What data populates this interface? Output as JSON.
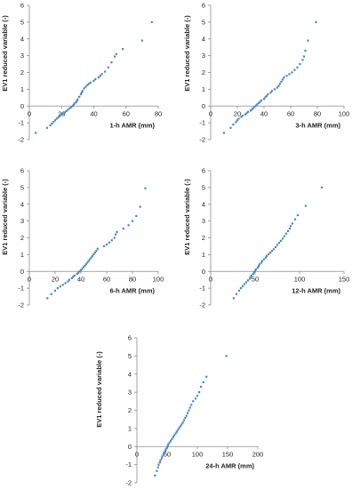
{
  "marker_color": "#4a86c5",
  "chart_data": [
    {
      "type": "scatter",
      "xlabel": "1-h AMR (mm)",
      "ylabel": "EV1 reduced variable (-)",
      "xlim": [
        0,
        80
      ],
      "ylim": [
        -2,
        6
      ],
      "xticks": [
        0,
        20,
        40,
        60,
        80
      ],
      "yticks": [
        -2,
        -1,
        0,
        1,
        2,
        3,
        4,
        5,
        6
      ],
      "points": [
        [
          4,
          -1.6
        ],
        [
          11,
          -1.3
        ],
        [
          13,
          -1.15
        ],
        [
          14,
          -1.05
        ],
        [
          15,
          -0.95
        ],
        [
          16,
          -0.85
        ],
        [
          17,
          -0.75
        ],
        [
          18,
          -0.68
        ],
        [
          19,
          -0.6
        ],
        [
          20,
          -0.52
        ],
        [
          21,
          -0.45
        ],
        [
          22,
          -0.38
        ],
        [
          23,
          -0.3
        ],
        [
          24,
          -0.22
        ],
        [
          25,
          -0.14
        ],
        [
          26,
          -0.07
        ],
        [
          27,
          0.0
        ],
        [
          27.5,
          0.07
        ],
        [
          28,
          0.15
        ],
        [
          29,
          0.22
        ],
        [
          29.5,
          0.3
        ],
        [
          30,
          0.4
        ],
        [
          31,
          0.55
        ],
        [
          32,
          0.7
        ],
        [
          32.5,
          0.8
        ],
        [
          33,
          0.9
        ],
        [
          34,
          1.05
        ],
        [
          35,
          1.15
        ],
        [
          36,
          1.25
        ],
        [
          37,
          1.32
        ],
        [
          38,
          1.4
        ],
        [
          40,
          1.5
        ],
        [
          41,
          1.6
        ],
        [
          43,
          1.7
        ],
        [
          44,
          1.8
        ],
        [
          45,
          1.9
        ],
        [
          47,
          2.05
        ],
        [
          49,
          2.3
        ],
        [
          51,
          2.6
        ],
        [
          53,
          2.95
        ],
        [
          54,
          3.1
        ],
        [
          58,
          3.4
        ],
        [
          70,
          3.9
        ],
        [
          76,
          5.0
        ]
      ]
    },
    {
      "type": "scatter",
      "xlabel": "3-h AMR (mm)",
      "ylabel": "EV1 reduced variable (-)",
      "xlim": [
        0,
        100
      ],
      "ylim": [
        -2,
        6
      ],
      "xticks": [
        0,
        20,
        40,
        60,
        80,
        100
      ],
      "yticks": [
        -2,
        -1,
        0,
        1,
        2,
        3,
        4,
        5,
        6
      ],
      "points": [
        [
          10,
          -1.6
        ],
        [
          15,
          -1.3
        ],
        [
          17,
          -1.1
        ],
        [
          19,
          -0.95
        ],
        [
          20,
          -0.85
        ],
        [
          21,
          -0.75
        ],
        [
          23,
          -0.65
        ],
        [
          24,
          -0.57
        ],
        [
          26,
          -0.5
        ],
        [
          27,
          -0.43
        ],
        [
          28,
          -0.35
        ],
        [
          30,
          -0.27
        ],
        [
          31,
          -0.2
        ],
        [
          32,
          -0.12
        ],
        [
          33,
          -0.05
        ],
        [
          34,
          0.03
        ],
        [
          35,
          0.1
        ],
        [
          36,
          0.18
        ],
        [
          37,
          0.25
        ],
        [
          38,
          0.33
        ],
        [
          40,
          0.42
        ],
        [
          41,
          0.52
        ],
        [
          42,
          0.6
        ],
        [
          43,
          0.7
        ],
        [
          45,
          0.8
        ],
        [
          46,
          0.9
        ],
        [
          48,
          1.0
        ],
        [
          50,
          1.1
        ],
        [
          51,
          1.2
        ],
        [
          52,
          1.32
        ],
        [
          53,
          1.45
        ],
        [
          54,
          1.58
        ],
        [
          55,
          1.7
        ],
        [
          57,
          1.8
        ],
        [
          59,
          1.9
        ],
        [
          61,
          2.0
        ],
        [
          63,
          2.15
        ],
        [
          65,
          2.3
        ],
        [
          67,
          2.5
        ],
        [
          69,
          2.75
        ],
        [
          70,
          2.95
        ],
        [
          71,
          3.3
        ],
        [
          73,
          3.9
        ],
        [
          79,
          5.0
        ]
      ]
    },
    {
      "type": "scatter",
      "xlabel": "6-h AMR (mm)",
      "ylabel": "EV1 reduced variable (-)",
      "xlim": [
        0,
        100
      ],
      "ylim": [
        -2,
        6
      ],
      "xticks": [
        0,
        20,
        40,
        60,
        80,
        100
      ],
      "yticks": [
        -2,
        -1,
        0,
        1,
        2,
        3,
        4,
        5,
        6
      ],
      "points": [
        [
          14,
          -1.6
        ],
        [
          17,
          -1.35
        ],
        [
          20,
          -1.15
        ],
        [
          22,
          -1.0
        ],
        [
          24,
          -0.9
        ],
        [
          26,
          -0.8
        ],
        [
          28,
          -0.7
        ],
        [
          30,
          -0.6
        ],
        [
          31,
          -0.5
        ],
        [
          33,
          -0.4
        ],
        [
          34,
          -0.32
        ],
        [
          35,
          -0.25
        ],
        [
          37,
          -0.15
        ],
        [
          38,
          -0.08
        ],
        [
          39,
          0.0
        ],
        [
          40,
          0.08
        ],
        [
          41,
          0.15
        ],
        [
          42,
          0.25
        ],
        [
          43,
          0.33
        ],
        [
          44,
          0.42
        ],
        [
          45,
          0.52
        ],
        [
          46,
          0.62
        ],
        [
          47,
          0.72
        ],
        [
          48,
          0.82
        ],
        [
          49,
          0.92
        ],
        [
          50,
          1.02
        ],
        [
          51,
          1.12
        ],
        [
          52,
          1.22
        ],
        [
          53,
          1.35
        ],
        [
          58,
          1.5
        ],
        [
          60,
          1.6
        ],
        [
          62,
          1.72
        ],
        [
          64,
          1.85
        ],
        [
          66,
          2.0
        ],
        [
          67,
          2.2
        ],
        [
          68,
          2.35
        ],
        [
          73,
          2.55
        ],
        [
          77,
          2.75
        ],
        [
          80,
          3.0
        ],
        [
          83,
          3.3
        ],
        [
          86,
          3.85
        ],
        [
          90,
          4.95
        ]
      ]
    },
    {
      "type": "scatter",
      "xlabel": "12-h AMR (mm)",
      "ylabel": "EV1 reduced variable (-)",
      "xlim": [
        0,
        150
      ],
      "ylim": [
        -2,
        6
      ],
      "xticks": [
        0,
        50,
        100,
        150
      ],
      "yticks": [
        -2,
        -1,
        0,
        1,
        2,
        3,
        4,
        5,
        6
      ],
      "points": [
        [
          26,
          -1.6
        ],
        [
          29,
          -1.35
        ],
        [
          32,
          -1.15
        ],
        [
          34,
          -1.0
        ],
        [
          36,
          -0.88
        ],
        [
          38,
          -0.76
        ],
        [
          40,
          -0.65
        ],
        [
          42,
          -0.54
        ],
        [
          44,
          -0.43
        ],
        [
          45,
          -0.33
        ],
        [
          46,
          -0.24
        ],
        [
          48,
          -0.15
        ],
        [
          49,
          -0.06
        ],
        [
          50,
          0.03
        ],
        [
          51,
          0.12
        ],
        [
          53,
          0.22
        ],
        [
          54,
          0.32
        ],
        [
          55,
          0.42
        ],
        [
          57,
          0.52
        ],
        [
          58,
          0.62
        ],
        [
          60,
          0.72
        ],
        [
          62,
          0.82
        ],
        [
          63,
          0.92
        ],
        [
          65,
          1.02
        ],
        [
          67,
          1.12
        ],
        [
          69,
          1.22
        ],
        [
          71,
          1.32
        ],
        [
          73,
          1.45
        ],
        [
          75,
          1.58
        ],
        [
          77,
          1.7
        ],
        [
          79,
          1.82
        ],
        [
          81,
          1.95
        ],
        [
          83,
          2.1
        ],
        [
          85,
          2.25
        ],
        [
          87,
          2.4
        ],
        [
          89,
          2.55
        ],
        [
          90,
          2.7
        ],
        [
          92,
          2.85
        ],
        [
          95,
          3.1
        ],
        [
          98,
          3.35
        ],
        [
          107,
          3.9
        ],
        [
          125,
          5.0
        ]
      ]
    },
    {
      "type": "scatter",
      "xlabel": "24-h AMR (mm)",
      "ylabel": "EV1 reduced variable (-)",
      "xlim": [
        0,
        200
      ],
      "ylim": [
        -2,
        6
      ],
      "xticks": [
        0,
        50,
        100,
        150,
        200
      ],
      "yticks": [
        -2,
        -1,
        0,
        1,
        2,
        3,
        4,
        5,
        6
      ],
      "points": [
        [
          30,
          -1.6
        ],
        [
          33,
          -1.35
        ],
        [
          35,
          -1.15
        ],
        [
          36,
          -1.0
        ],
        [
          38,
          -0.88
        ],
        [
          39,
          -0.76
        ],
        [
          41,
          -0.65
        ],
        [
          42,
          -0.54
        ],
        [
          44,
          -0.43
        ],
        [
          45,
          -0.33
        ],
        [
          47,
          -0.24
        ],
        [
          48,
          -0.15
        ],
        [
          50,
          -0.06
        ],
        [
          51,
          0.03
        ],
        [
          52,
          0.12
        ],
        [
          54,
          0.22
        ],
        [
          56,
          0.32
        ],
        [
          58,
          0.42
        ],
        [
          60,
          0.52
        ],
        [
          62,
          0.62
        ],
        [
          64,
          0.72
        ],
        [
          66,
          0.82
        ],
        [
          68,
          0.92
        ],
        [
          70,
          1.02
        ],
        [
          72,
          1.12
        ],
        [
          74,
          1.22
        ],
        [
          76,
          1.32
        ],
        [
          78,
          1.45
        ],
        [
          80,
          1.58
        ],
        [
          82,
          1.7
        ],
        [
          84,
          1.85
        ],
        [
          86,
          2.0
        ],
        [
          88,
          2.15
        ],
        [
          90,
          2.3
        ],
        [
          93,
          2.5
        ],
        [
          97,
          2.65
        ],
        [
          100,
          2.8
        ],
        [
          103,
          3.0
        ],
        [
          106,
          3.3
        ],
        [
          110,
          3.55
        ],
        [
          115,
          3.85
        ],
        [
          148,
          5.0
        ]
      ]
    }
  ]
}
